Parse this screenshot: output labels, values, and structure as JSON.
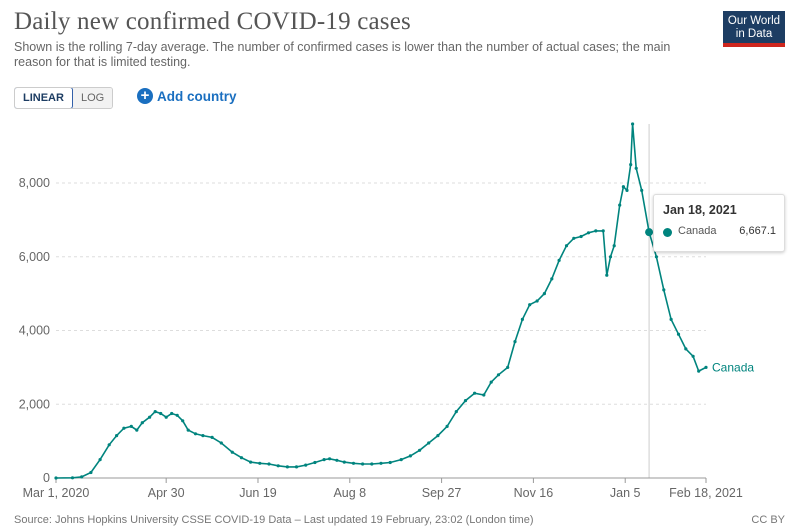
{
  "header": {
    "title": "Daily new confirmed COVID-19 cases",
    "subtitle": "Shown is the rolling 7-day average. The number of confirmed cases is lower than the number of actual cases; the main reason for that is limited testing.",
    "logo_line1": "Our World",
    "logo_line2": "in Data"
  },
  "controls": {
    "linear_label": "LINEAR",
    "log_label": "LOG",
    "add_country_label": "Add country",
    "plus_icon": "plus-circle-icon"
  },
  "tooltip": {
    "date": "Jan 18, 2021",
    "series": "Canada",
    "value": "6,667.1"
  },
  "footer": {
    "source": "Source: Johns Hopkins University CSSE COVID-19 Data – Last updated 19 February, 23:02 (London time)",
    "license": "CC BY"
  },
  "colors": {
    "series": "#00847e",
    "grid": "#dddddd",
    "accent": "#1a6fc0"
  },
  "chart_data": {
    "type": "line",
    "xlim": [
      "2020-03-01",
      "2021-02-18"
    ],
    "ylim": [
      0,
      9600
    ],
    "yticks": [
      0,
      2000,
      4000,
      6000,
      8000
    ],
    "ytick_labels": [
      "0",
      "2,000",
      "4,000",
      "6,000",
      "8,000"
    ],
    "xticks": [
      "2020-03-01",
      "2020-04-30",
      "2020-06-19",
      "2020-08-08",
      "2020-09-27",
      "2020-11-16",
      "2021-01-05",
      "2021-02-18"
    ],
    "xtick_labels": [
      "Mar 1, 2020",
      "Apr 30",
      "Jun 19",
      "Aug 8",
      "Sep 27",
      "Nov 16",
      "Jan 5",
      "Feb 18, 2021"
    ],
    "grid": true,
    "series": [
      {
        "name": "Canada",
        "points": [
          [
            "2020-03-01",
            0
          ],
          [
            "2020-03-10",
            5
          ],
          [
            "2020-03-15",
            30
          ],
          [
            "2020-03-20",
            150
          ],
          [
            "2020-03-25",
            500
          ],
          [
            "2020-03-30",
            900
          ],
          [
            "2020-04-03",
            1150
          ],
          [
            "2020-04-07",
            1350
          ],
          [
            "2020-04-11",
            1400
          ],
          [
            "2020-04-14",
            1300
          ],
          [
            "2020-04-17",
            1500
          ],
          [
            "2020-04-21",
            1650
          ],
          [
            "2020-04-24",
            1800
          ],
          [
            "2020-04-27",
            1750
          ],
          [
            "2020-04-30",
            1650
          ],
          [
            "2020-05-03",
            1750
          ],
          [
            "2020-05-06",
            1700
          ],
          [
            "2020-05-09",
            1550
          ],
          [
            "2020-05-12",
            1300
          ],
          [
            "2020-05-16",
            1200
          ],
          [
            "2020-05-20",
            1150
          ],
          [
            "2020-05-25",
            1100
          ],
          [
            "2020-05-30",
            950
          ],
          [
            "2020-06-05",
            700
          ],
          [
            "2020-06-10",
            550
          ],
          [
            "2020-06-15",
            430
          ],
          [
            "2020-06-20",
            400
          ],
          [
            "2020-06-25",
            380
          ],
          [
            "2020-06-30",
            330
          ],
          [
            "2020-07-05",
            300
          ],
          [
            "2020-07-10",
            300
          ],
          [
            "2020-07-15",
            350
          ],
          [
            "2020-07-20",
            420
          ],
          [
            "2020-07-25",
            500
          ],
          [
            "2020-07-28",
            520
          ],
          [
            "2020-08-01",
            480
          ],
          [
            "2020-08-05",
            430
          ],
          [
            "2020-08-10",
            400
          ],
          [
            "2020-08-15",
            380
          ],
          [
            "2020-08-20",
            380
          ],
          [
            "2020-08-25",
            400
          ],
          [
            "2020-08-30",
            420
          ],
          [
            "2020-09-05",
            500
          ],
          [
            "2020-09-10",
            600
          ],
          [
            "2020-09-15",
            750
          ],
          [
            "2020-09-20",
            950
          ],
          [
            "2020-09-25",
            1150
          ],
          [
            "2020-09-30",
            1400
          ],
          [
            "2020-10-05",
            1800
          ],
          [
            "2020-10-10",
            2100
          ],
          [
            "2020-10-15",
            2300
          ],
          [
            "2020-10-20",
            2250
          ],
          [
            "2020-10-24",
            2600
          ],
          [
            "2020-10-28",
            2800
          ],
          [
            "2020-11-02",
            3000
          ],
          [
            "2020-11-06",
            3700
          ],
          [
            "2020-11-10",
            4300
          ],
          [
            "2020-11-14",
            4700
          ],
          [
            "2020-11-18",
            4800
          ],
          [
            "2020-11-22",
            5000
          ],
          [
            "2020-11-26",
            5400
          ],
          [
            "2020-11-30",
            5900
          ],
          [
            "2020-12-04",
            6300
          ],
          [
            "2020-12-08",
            6500
          ],
          [
            "2020-12-12",
            6550
          ],
          [
            "2020-12-16",
            6650
          ],
          [
            "2020-12-20",
            6700
          ],
          [
            "2020-12-24",
            6700
          ],
          [
            "2020-12-26",
            5500
          ],
          [
            "2020-12-28",
            6000
          ],
          [
            "2020-12-30",
            6300
          ],
          [
            "2021-01-02",
            7400
          ],
          [
            "2021-01-04",
            7900
          ],
          [
            "2021-01-06",
            7800
          ],
          [
            "2021-01-08",
            8500
          ],
          [
            "2021-01-09",
            9600
          ],
          [
            "2021-01-11",
            8400
          ],
          [
            "2021-01-14",
            7800
          ],
          [
            "2021-01-18",
            6667
          ],
          [
            "2021-01-22",
            6000
          ],
          [
            "2021-01-26",
            5100
          ],
          [
            "2021-01-30",
            4300
          ],
          [
            "2021-02-03",
            3900
          ],
          [
            "2021-02-07",
            3500
          ],
          [
            "2021-02-11",
            3300
          ],
          [
            "2021-02-14",
            2900
          ],
          [
            "2021-02-18",
            3000
          ]
        ]
      }
    ]
  }
}
